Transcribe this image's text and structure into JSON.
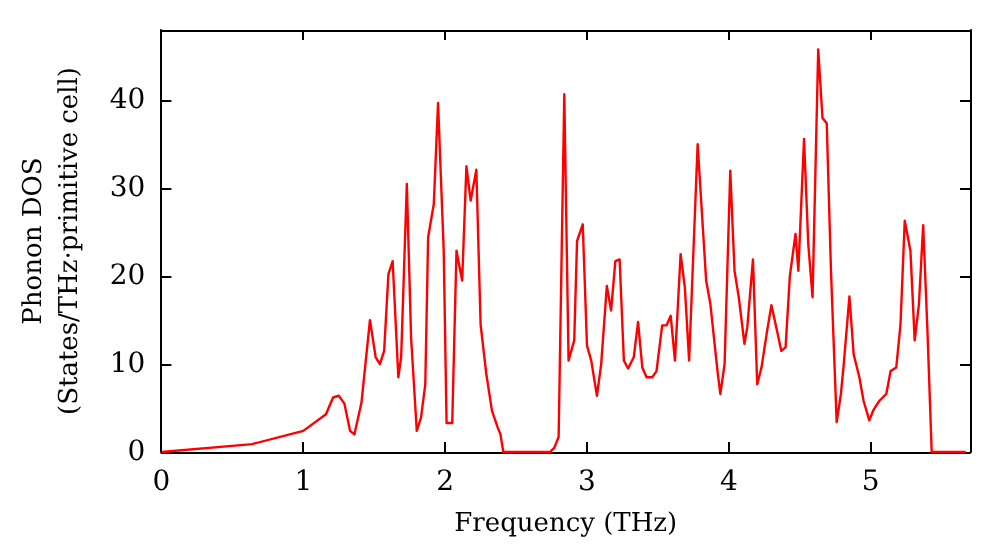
{
  "chart_data": {
    "type": "line",
    "xlabel": "Frequency (THz)",
    "ylabel": "Phonon DOS\n(States/THz·primitive cell)",
    "xlim": [
      0,
      5.7
    ],
    "ylim": [
      0,
      48
    ],
    "xticks": [
      0,
      1,
      2,
      3,
      4,
      5
    ],
    "yticks": [
      0,
      10,
      20,
      30,
      40
    ],
    "grid": false,
    "marker": "none",
    "line_style": "solid",
    "series": [
      {
        "color": "#ff0000",
        "x": [
          0,
          0.64,
          1.0,
          1.16,
          1.21,
          1.25,
          1.29,
          1.33,
          1.36,
          1.41,
          1.47,
          1.51,
          1.54,
          1.57,
          1.6,
          1.63,
          1.67,
          1.69,
          1.73,
          1.76,
          1.8,
          1.83,
          1.86,
          1.88,
          1.92,
          1.95,
          1.99,
          2.01,
          2.05,
          2.08,
          2.12,
          2.15,
          2.18,
          2.22,
          2.25,
          2.29,
          2.33,
          2.37,
          2.39,
          2.41,
          2.74,
          2.77,
          2.8,
          2.84,
          2.87,
          2.91,
          2.93,
          2.97,
          3.0,
          3.03,
          3.07,
          3.1,
          3.14,
          3.17,
          3.2,
          3.23,
          3.26,
          3.29,
          3.33,
          3.36,
          3.39,
          3.42,
          3.46,
          3.49,
          3.53,
          3.56,
          3.59,
          3.62,
          3.66,
          3.69,
          3.72,
          3.78,
          3.84,
          3.87,
          3.92,
          3.94,
          3.97,
          4.01,
          4.04,
          4.07,
          4.11,
          4.13,
          4.17,
          4.2,
          4.23,
          4.27,
          4.3,
          4.33,
          4.37,
          4.4,
          4.43,
          4.47,
          4.49,
          4.53,
          4.56,
          4.59,
          4.63,
          4.66,
          4.69,
          4.72,
          4.76,
          4.79,
          4.81,
          4.85,
          4.88,
          4.92,
          4.95,
          4.99,
          5.02,
          5.06,
          5.11,
          5.14,
          5.18,
          5.21,
          5.24,
          5.28,
          5.31,
          5.34,
          5.37,
          5.4,
          5.43,
          5.67
        ],
        "values": [
          0,
          0.9,
          2.4,
          4.3,
          6.2,
          6.4,
          5.5,
          2.4,
          2,
          5.6,
          15,
          10.8,
          10,
          11.5,
          20.2,
          21.7,
          8.5,
          10.8,
          30.5,
          13,
          2.4,
          3.9,
          7.7,
          24.4,
          28.2,
          39.7,
          22.9,
          3.3,
          3.3,
          22.9,
          19.5,
          32.5,
          28.6,
          32.1,
          14.5,
          8.9,
          4.7,
          2.8,
          2,
          0,
          0,
          0.5,
          1.7,
          40.7,
          10.4,
          12.7,
          24,
          25.9,
          12.1,
          10.4,
          6.4,
          10,
          18.9,
          16.1,
          21.7,
          21.9,
          10.4,
          9.5,
          10.8,
          14.8,
          9.6,
          8.5,
          8.5,
          9.2,
          14.4,
          14.4,
          15.5,
          10.4,
          22.5,
          18.7,
          10.4,
          35,
          19.5,
          16.8,
          9.2,
          6.6,
          10,
          32,
          20.6,
          17.6,
          12.3,
          14.2,
          21.9,
          7.7,
          9.6,
          13.8,
          16.7,
          14.5,
          11.5,
          11.9,
          20,
          24.8,
          20.6,
          35.6,
          23.6,
          17.6,
          45.8,
          38,
          37.4,
          20.6,
          3.4,
          6.6,
          10,
          17.7,
          11.1,
          8.5,
          5.8,
          3.6,
          4.8,
          5.8,
          6.6,
          9.2,
          9.6,
          14.5,
          26.3,
          22.9,
          12.7,
          16.8,
          25.8,
          13.8,
          0,
          0
        ]
      }
    ]
  }
}
